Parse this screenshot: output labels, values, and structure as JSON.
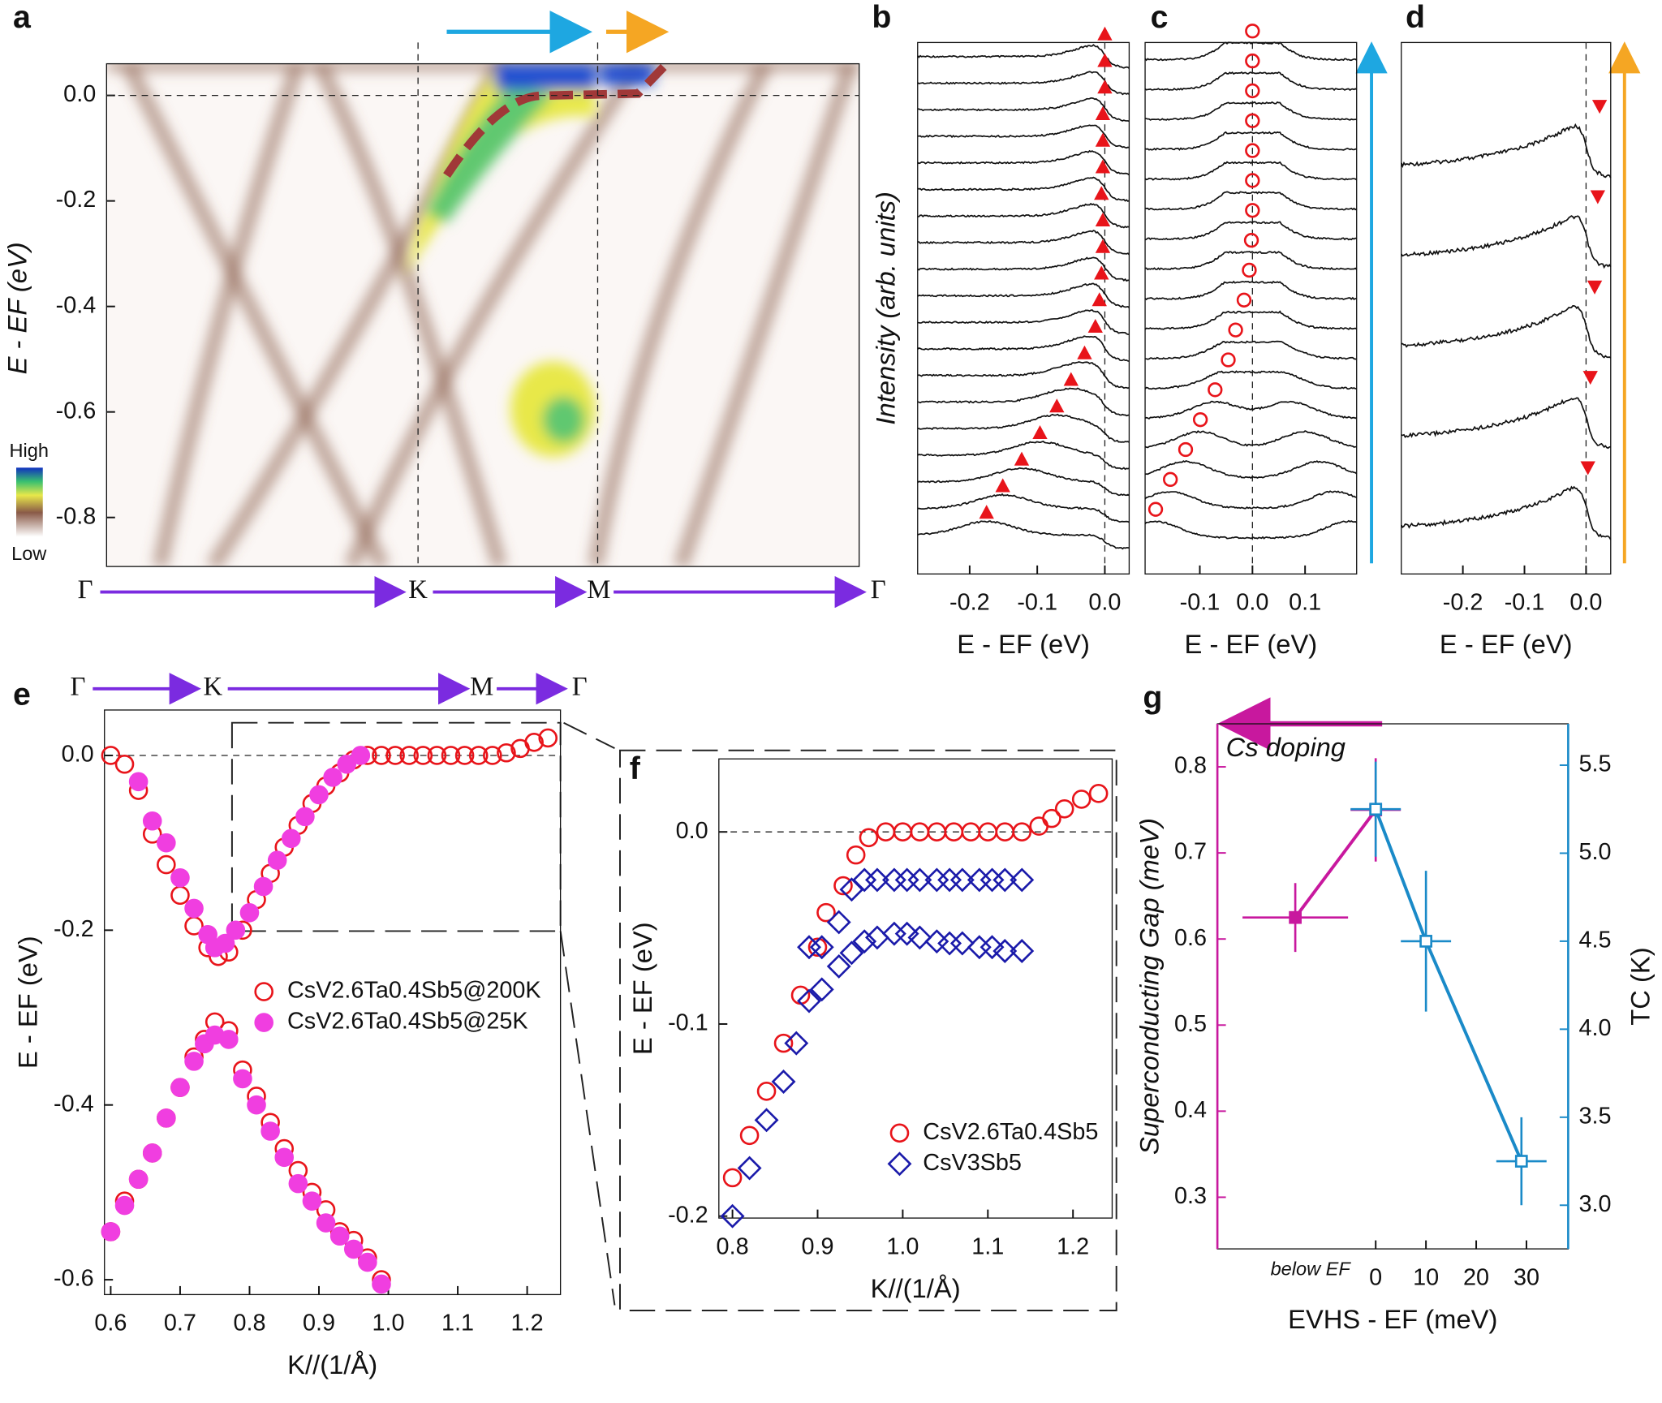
{
  "chart_data": [
    {
      "type": "heatmap",
      "panel_label": "a",
      "ylabel": "E - EF (eV)",
      "ylim": [
        -0.893,
        0.06
      ],
      "yticks": [
        {
          "value": 0,
          "label": "0.0"
        },
        -0.2,
        -0.4,
        -0.6,
        -0.8
      ],
      "path_labels": [
        "Γ",
        "K",
        "M",
        "Γ"
      ],
      "colorbar_labels": [
        "High",
        "Low"
      ]
    },
    {
      "type": "edc",
      "panel_label": "b",
      "ylabel": "Intensity (arb. units)",
      "xlabel": "E - EF (eV)",
      "xlim": [
        -0.277,
        0.036
      ],
      "xticks": [
        -0.2,
        -0.1,
        {
          "value": 0,
          "label": "0.0"
        }
      ],
      "marker": "triangle-up",
      "color": "#e8141a",
      "symmetrized": false,
      "zero_line": true,
      "peaks": [
        0,
        0,
        0,
        -0.003,
        -0.003,
        -0.003,
        -0.005,
        -0.003,
        -0.003,
        -0.005,
        -0.008,
        -0.014,
        -0.03,
        -0.05,
        -0.071,
        -0.096,
        -0.123,
        -0.151,
        -0.175
      ]
    },
    {
      "type": "edc",
      "panel_label": "c",
      "xlabel": "E - EF (eV)",
      "xlim": [
        -0.204,
        0.198
      ],
      "xticks": [
        -0.1,
        {
          "value": 0,
          "label": "0.0"
        },
        0.1
      ],
      "marker": "circle-open",
      "color": "#e8141a",
      "symmetrized": true,
      "zero_line": true,
      "peaks": [
        0,
        0,
        0,
        0,
        0,
        0,
        0,
        -0.002,
        -0.006,
        -0.016,
        -0.032,
        -0.046,
        -0.071,
        -0.099,
        -0.127,
        -0.156,
        -0.184
      ]
    },
    {
      "type": "edc",
      "panel_label": "d",
      "xlabel": "E - EF (eV)",
      "xlim": [
        -0.3,
        0.04
      ],
      "xticks": [
        -0.2,
        -0.1,
        {
          "value": 0,
          "label": "0.0"
        }
      ],
      "marker": "triangle-down",
      "color": "#e8141a",
      "symmetrized": false,
      "zero_line": true,
      "peaks": [
        0.022,
        0.019,
        0.014,
        0.007,
        0.003
      ]
    },
    {
      "type": "scatter",
      "panel_label": "e",
      "ylabel": "E - EF (eV)",
      "xlabel": "K//(1/Å)",
      "path_labels": [
        "Γ",
        "K",
        "M",
        "Γ"
      ],
      "xlim": [
        0.591,
        1.248
      ],
      "xticks": [
        0.6,
        0.7,
        0.8,
        0.9,
        {
          "value": 1,
          "label": "1.0"
        },
        1.1,
        1.2
      ],
      "ylim": [
        -0.617,
        0.052
      ],
      "yticks": [
        {
          "value": 0,
          "label": "0.0"
        },
        -0.2,
        -0.4,
        -0.6
      ],
      "zero_line": true,
      "legend": "center",
      "series": [
        {
          "name": "CsV2.6Ta0.4Sb5@200K",
          "color": "#e8141a",
          "marker": "circle-open",
          "x": [
            0.6,
            0.62,
            0.64,
            0.66,
            0.68,
            0.7,
            0.72,
            0.74,
            0.755,
            0.77,
            0.79,
            0.81,
            0.83,
            0.85,
            0.87,
            0.89,
            0.91,
            0.93,
            0.95,
            0.97,
            0.99,
            1.01,
            1.03,
            1.05,
            1.07,
            1.09,
            1.11,
            1.13,
            1.15,
            1.17,
            1.19,
            1.21,
            1.23,
            0.6,
            0.62,
            0.64,
            0.66,
            0.68,
            0.7,
            0.72,
            0.735,
            0.75,
            0.77,
            0.79,
            0.81,
            0.83,
            0.85,
            0.87,
            0.89,
            0.91,
            0.93,
            0.95,
            0.97,
            0.99
          ],
          "values": [
            0,
            -0.01,
            -0.04,
            -0.09,
            -0.125,
            -0.16,
            -0.195,
            -0.22,
            -0.23,
            -0.225,
            -0.2,
            -0.165,
            -0.135,
            -0.105,
            -0.08,
            -0.055,
            -0.035,
            -0.02,
            -0.005,
            0,
            0,
            0,
            0,
            0,
            0,
            0,
            0,
            0,
            0,
            0.003,
            0.008,
            0.015,
            0.02,
            -0.545,
            -0.51,
            -0.485,
            -0.455,
            -0.415,
            -0.38,
            -0.345,
            -0.325,
            -0.305,
            -0.315,
            -0.36,
            -0.39,
            -0.42,
            -0.45,
            -0.475,
            -0.5,
            -0.52,
            -0.545,
            -0.555,
            -0.575,
            -0.6
          ]
        },
        {
          "name": "CsV2.6Ta0.4Sb5@25K",
          "color": "#f03ee0",
          "marker": "circle",
          "x": [
            0.64,
            0.66,
            0.68,
            0.7,
            0.72,
            0.74,
            0.75,
            0.765,
            0.78,
            0.8,
            0.82,
            0.84,
            0.86,
            0.88,
            0.9,
            0.92,
            0.94,
            0.96,
            0.6,
            0.62,
            0.64,
            0.66,
            0.68,
            0.7,
            0.72,
            0.735,
            0.75,
            0.77,
            0.79,
            0.81,
            0.83,
            0.85,
            0.87,
            0.89,
            0.91,
            0.93,
            0.95,
            0.97,
            0.99
          ],
          "values": [
            -0.03,
            -0.075,
            -0.1,
            -0.14,
            -0.175,
            -0.205,
            -0.22,
            -0.215,
            -0.2,
            -0.18,
            -0.15,
            -0.12,
            -0.095,
            -0.07,
            -0.045,
            -0.025,
            -0.01,
            0,
            -0.545,
            -0.515,
            -0.485,
            -0.455,
            -0.415,
            -0.38,
            -0.35,
            -0.33,
            -0.32,
            -0.325,
            -0.37,
            -0.4,
            -0.43,
            -0.46,
            -0.49,
            -0.51,
            -0.535,
            -0.55,
            -0.565,
            -0.58,
            -0.605
          ]
        }
      ]
    },
    {
      "type": "scatter",
      "panel_label": "f",
      "ylabel": "E - EF (eV)",
      "xlabel": "K//(1/Å)",
      "xlim": [
        0.784,
        1.246
      ],
      "xticks": [
        0.8,
        0.9,
        {
          "value": 1,
          "label": "1.0"
        },
        1.1,
        1.2
      ],
      "ylim": [
        -0.201,
        0.038
      ],
      "yticks": [
        {
          "value": 0,
          "label": "0.0"
        },
        -0.1,
        -0.2
      ],
      "zero_line": true,
      "legend": "lower right",
      "series": [
        {
          "name": "CsV2.6Ta0.4Sb5",
          "color": "#e8141a",
          "marker": "circle-open",
          "x": [
            0.8,
            0.82,
            0.84,
            0.86,
            0.88,
            0.9,
            0.91,
            0.93,
            0.945,
            0.96,
            0.98,
            1,
            1.02,
            1.04,
            1.06,
            1.08,
            1.1,
            1.12,
            1.14,
            1.16,
            1.175,
            1.19,
            1.21,
            1.23
          ],
          "values": [
            -0.18,
            -0.158,
            -0.135,
            -0.11,
            -0.085,
            -0.06,
            -0.042,
            -0.028,
            -0.012,
            -0.003,
            0,
            0,
            0,
            0,
            0,
            0,
            0,
            0,
            0,
            0.003,
            0.007,
            0.012,
            0.017,
            0.02
          ]
        },
        {
          "name": "CsV3Sb5",
          "color": "#1a1aaa",
          "marker": "diamond-open",
          "x": [
            0.8,
            0.82,
            0.84,
            0.86,
            0.875,
            0.89,
            0.905,
            0.925,
            0.94,
            0.955,
            0.97,
            0.99,
            1.005,
            1.02,
            1.04,
            1.055,
            1.07,
            1.09,
            1.105,
            1.12,
            1.14,
            0.89,
            0.905,
            0.925,
            0.94,
            0.955,
            0.97,
            0.99,
            1.005,
            1.02,
            1.04,
            1.055,
            1.07,
            1.09,
            1.105,
            1.12,
            1.14
          ],
          "values": [
            -0.2,
            -0.175,
            -0.15,
            -0.13,
            -0.11,
            -0.088,
            -0.082,
            -0.07,
            -0.063,
            -0.057,
            -0.055,
            -0.053,
            -0.053,
            -0.055,
            -0.057,
            -0.058,
            -0.058,
            -0.06,
            -0.06,
            -0.062,
            -0.062,
            -0.06,
            -0.06,
            -0.047,
            -0.03,
            -0.025,
            -0.025,
            -0.025,
            -0.025,
            -0.025,
            -0.025,
            -0.025,
            -0.025,
            -0.025,
            -0.025,
            -0.025,
            -0.025
          ]
        }
      ]
    },
    {
      "type": "scatter",
      "panel_label": "g",
      "ylabel": "Superconducting Gap (meV)",
      "y2label": "TC (K)",
      "xlabel": "EVHS - EF (meV)",
      "annotations": [
        "Cs doping",
        "below EF"
      ],
      "axis_colors": {
        "y": "#c8189e",
        "y2": "#1a8ac8"
      },
      "xlim": [
        -31.5,
        38.3
      ],
      "xticks": [
        0,
        10,
        20,
        30
      ],
      "ylim": [
        0.24,
        0.85
      ],
      "yticks": [
        0.3,
        0.4,
        0.5,
        0.6,
        0.7,
        0.8
      ],
      "y2lim": [
        2.752,
        5.735
      ],
      "y2ticks": [
        {
          "value": 3,
          "label": "3.0"
        },
        3.5,
        {
          "value": 4,
          "label": "4.0"
        },
        4.5,
        {
          "value": 5,
          "label": "5.0"
        },
        5.5
      ],
      "series": [
        {
          "color": "#c8189e",
          "marker": "square",
          "line": true,
          "x": [
            -16,
            0
          ],
          "values": [
            0.625,
            0.75
          ],
          "xerr": [
            10.5,
            5
          ],
          "yerr": [
            0.04,
            0.06
          ]
        },
        {
          "color": "#1a8ac8",
          "marker": "square-open",
          "line": true,
          "axis": "y2",
          "x": [
            0,
            10,
            29
          ],
          "values": [
            5.25,
            4.5,
            3.25
          ],
          "xerr": [
            5,
            5,
            5
          ],
          "yerr": [
            0.27,
            0.4,
            0.25
          ]
        }
      ]
    }
  ]
}
